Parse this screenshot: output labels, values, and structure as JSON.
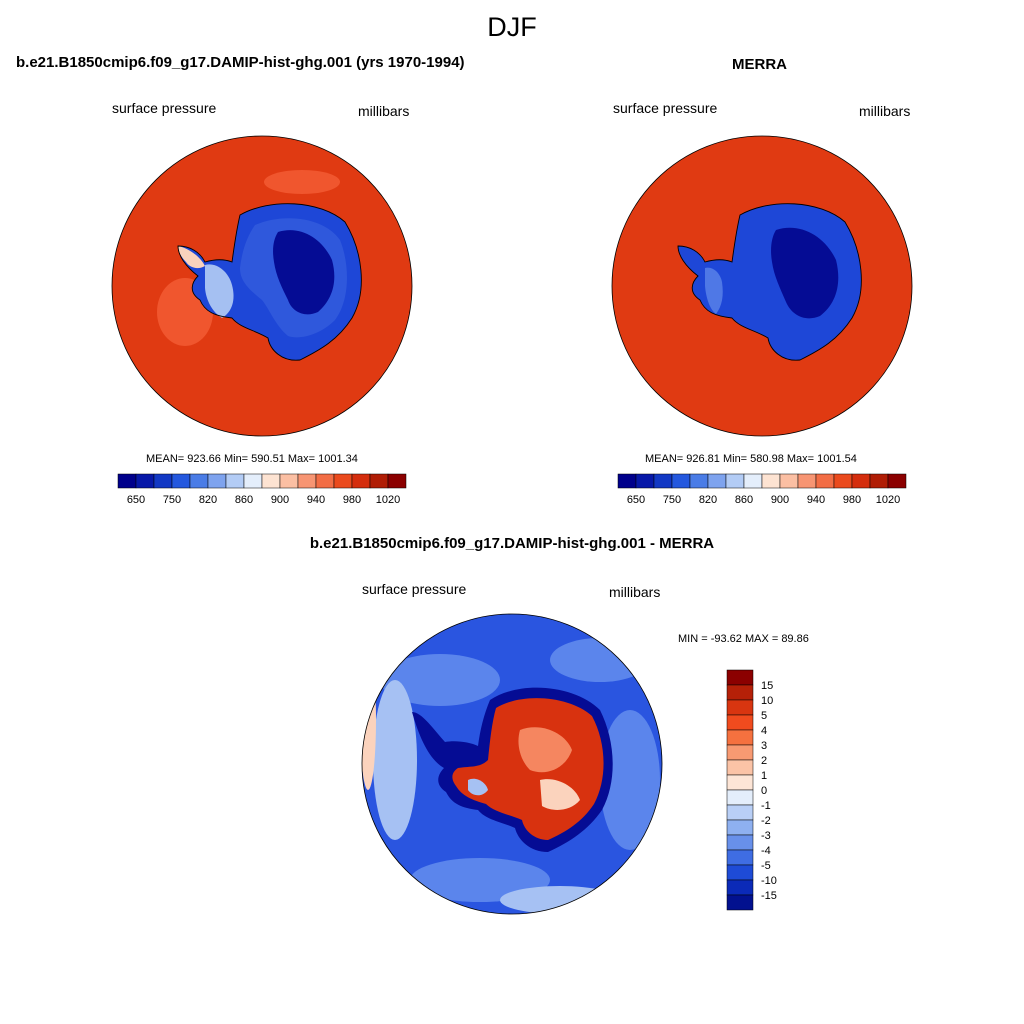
{
  "season": "DJF",
  "colors": {
    "ocean_red": "#e03a12",
    "ocean_light_red": "#f0562e",
    "antarctica_blue_dark": "#050c94",
    "antarctica_blue": "#1e47d7",
    "antarctica_blue_mid": "#4f78e6",
    "antarctica_blue_light": "#a5c0f2",
    "diff_blue_dark": "#1033cf",
    "diff_blue": "#2a55e0",
    "diff_blue_mid": "#5b85ec",
    "diff_blue_light": "#a6c1f3",
    "diff_red": "#d8320f"
  },
  "panels": [
    {
      "title": "b.e21.B1850cmip6.f09_g17.DAMIP-hist-ghg.001 (yrs 1970-1994)",
      "left_label": "surface pressure",
      "right_label": "millibars",
      "stats": "MEAN= 923.66  Min= 590.51  Max= 1001.34"
    },
    {
      "title": "MERRA",
      "left_label": "surface pressure",
      "right_label": "millibars",
      "stats": "MEAN= 926.81  Min= 580.98  Max= 1001.54"
    },
    {
      "title": "b.e21.B1850cmip6.f09_g17.DAMIP-hist-ghg.001 - MERRA",
      "left_label": "surface pressure",
      "right_label": "millibars",
      "stats": "MIN = -93.62 MAX =  89.86"
    }
  ],
  "colorbar_top": {
    "tick_labels": [
      "650",
      "750",
      "820",
      "860",
      "900",
      "940",
      "980",
      "1020"
    ],
    "colors": [
      "#00008b",
      "#0718a8",
      "#1238c4",
      "#2458de",
      "#4a7ce6",
      "#7ea3ee",
      "#b3ccf5",
      "#e4eefb",
      "#fde3d2",
      "#fbbfa3",
      "#f79573",
      "#f26d45",
      "#ea4a1d",
      "#d42d0d",
      "#b01d05",
      "#8b0000"
    ]
  },
  "colorbar_diff": {
    "tick_labels": [
      "15",
      "10",
      "5",
      "4",
      "3",
      "2",
      "1",
      "0",
      "-1",
      "-2",
      "-3",
      "-4",
      "-5",
      "-10",
      "-15"
    ],
    "colors": [
      "#8b0000",
      "#b52008",
      "#d83510",
      "#f04b1e",
      "#f5713f",
      "#f89a72",
      "#fbc3a6",
      "#fde5d6",
      "#e4eefb",
      "#b9cff6",
      "#8eb0f0",
      "#6890ea",
      "#3f6de3",
      "#1e4bd6",
      "#0b2ab8",
      "#02118f"
    ]
  }
}
